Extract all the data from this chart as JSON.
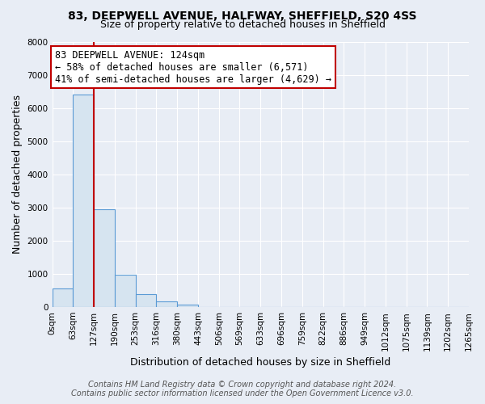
{
  "title1": "83, DEEPWELL AVENUE, HALFWAY, SHEFFIELD, S20 4SS",
  "title2": "Size of property relative to detached houses in Sheffield",
  "xlabel": "Distribution of detached houses by size in Sheffield",
  "ylabel": "Number of detached properties",
  "bar_values": [
    560,
    6400,
    2950,
    980,
    390,
    170,
    80,
    0,
    0,
    0,
    0,
    0,
    0,
    0,
    0,
    0,
    0,
    0,
    0,
    0
  ],
  "bar_labels": [
    "0sqm",
    "63sqm",
    "127sqm",
    "190sqm",
    "253sqm",
    "316sqm",
    "380sqm",
    "443sqm",
    "506sqm",
    "569sqm",
    "633sqm",
    "696sqm",
    "759sqm",
    "822sqm",
    "886sqm",
    "949sqm",
    "1012sqm",
    "1075sqm",
    "1139sqm",
    "1202sqm",
    "1265sqm"
  ],
  "bar_color": "#d6e4f0",
  "bar_edge_color": "#5b9bd5",
  "vline_color": "#c00000",
  "annotation_text": "83 DEEPWELL AVENUE: 124sqm\n← 58% of detached houses are smaller (6,571)\n41% of semi-detached houses are larger (4,629) →",
  "annotation_box_color": "white",
  "annotation_box_edgecolor": "#c00000",
  "ylim": [
    0,
    8000
  ],
  "yticks": [
    0,
    1000,
    2000,
    3000,
    4000,
    5000,
    6000,
    7000,
    8000
  ],
  "background_color": "#e8edf5",
  "grid_color": "#ffffff",
  "footer_line1": "Contains HM Land Registry data © Crown copyright and database right 2024.",
  "footer_line2": "Contains public sector information licensed under the Open Government Licence v3.0.",
  "title1_fontsize": 10,
  "title2_fontsize": 9,
  "axis_label_fontsize": 9,
  "tick_fontsize": 7.5,
  "annotation_fontsize": 8.5,
  "footer_fontsize": 7
}
